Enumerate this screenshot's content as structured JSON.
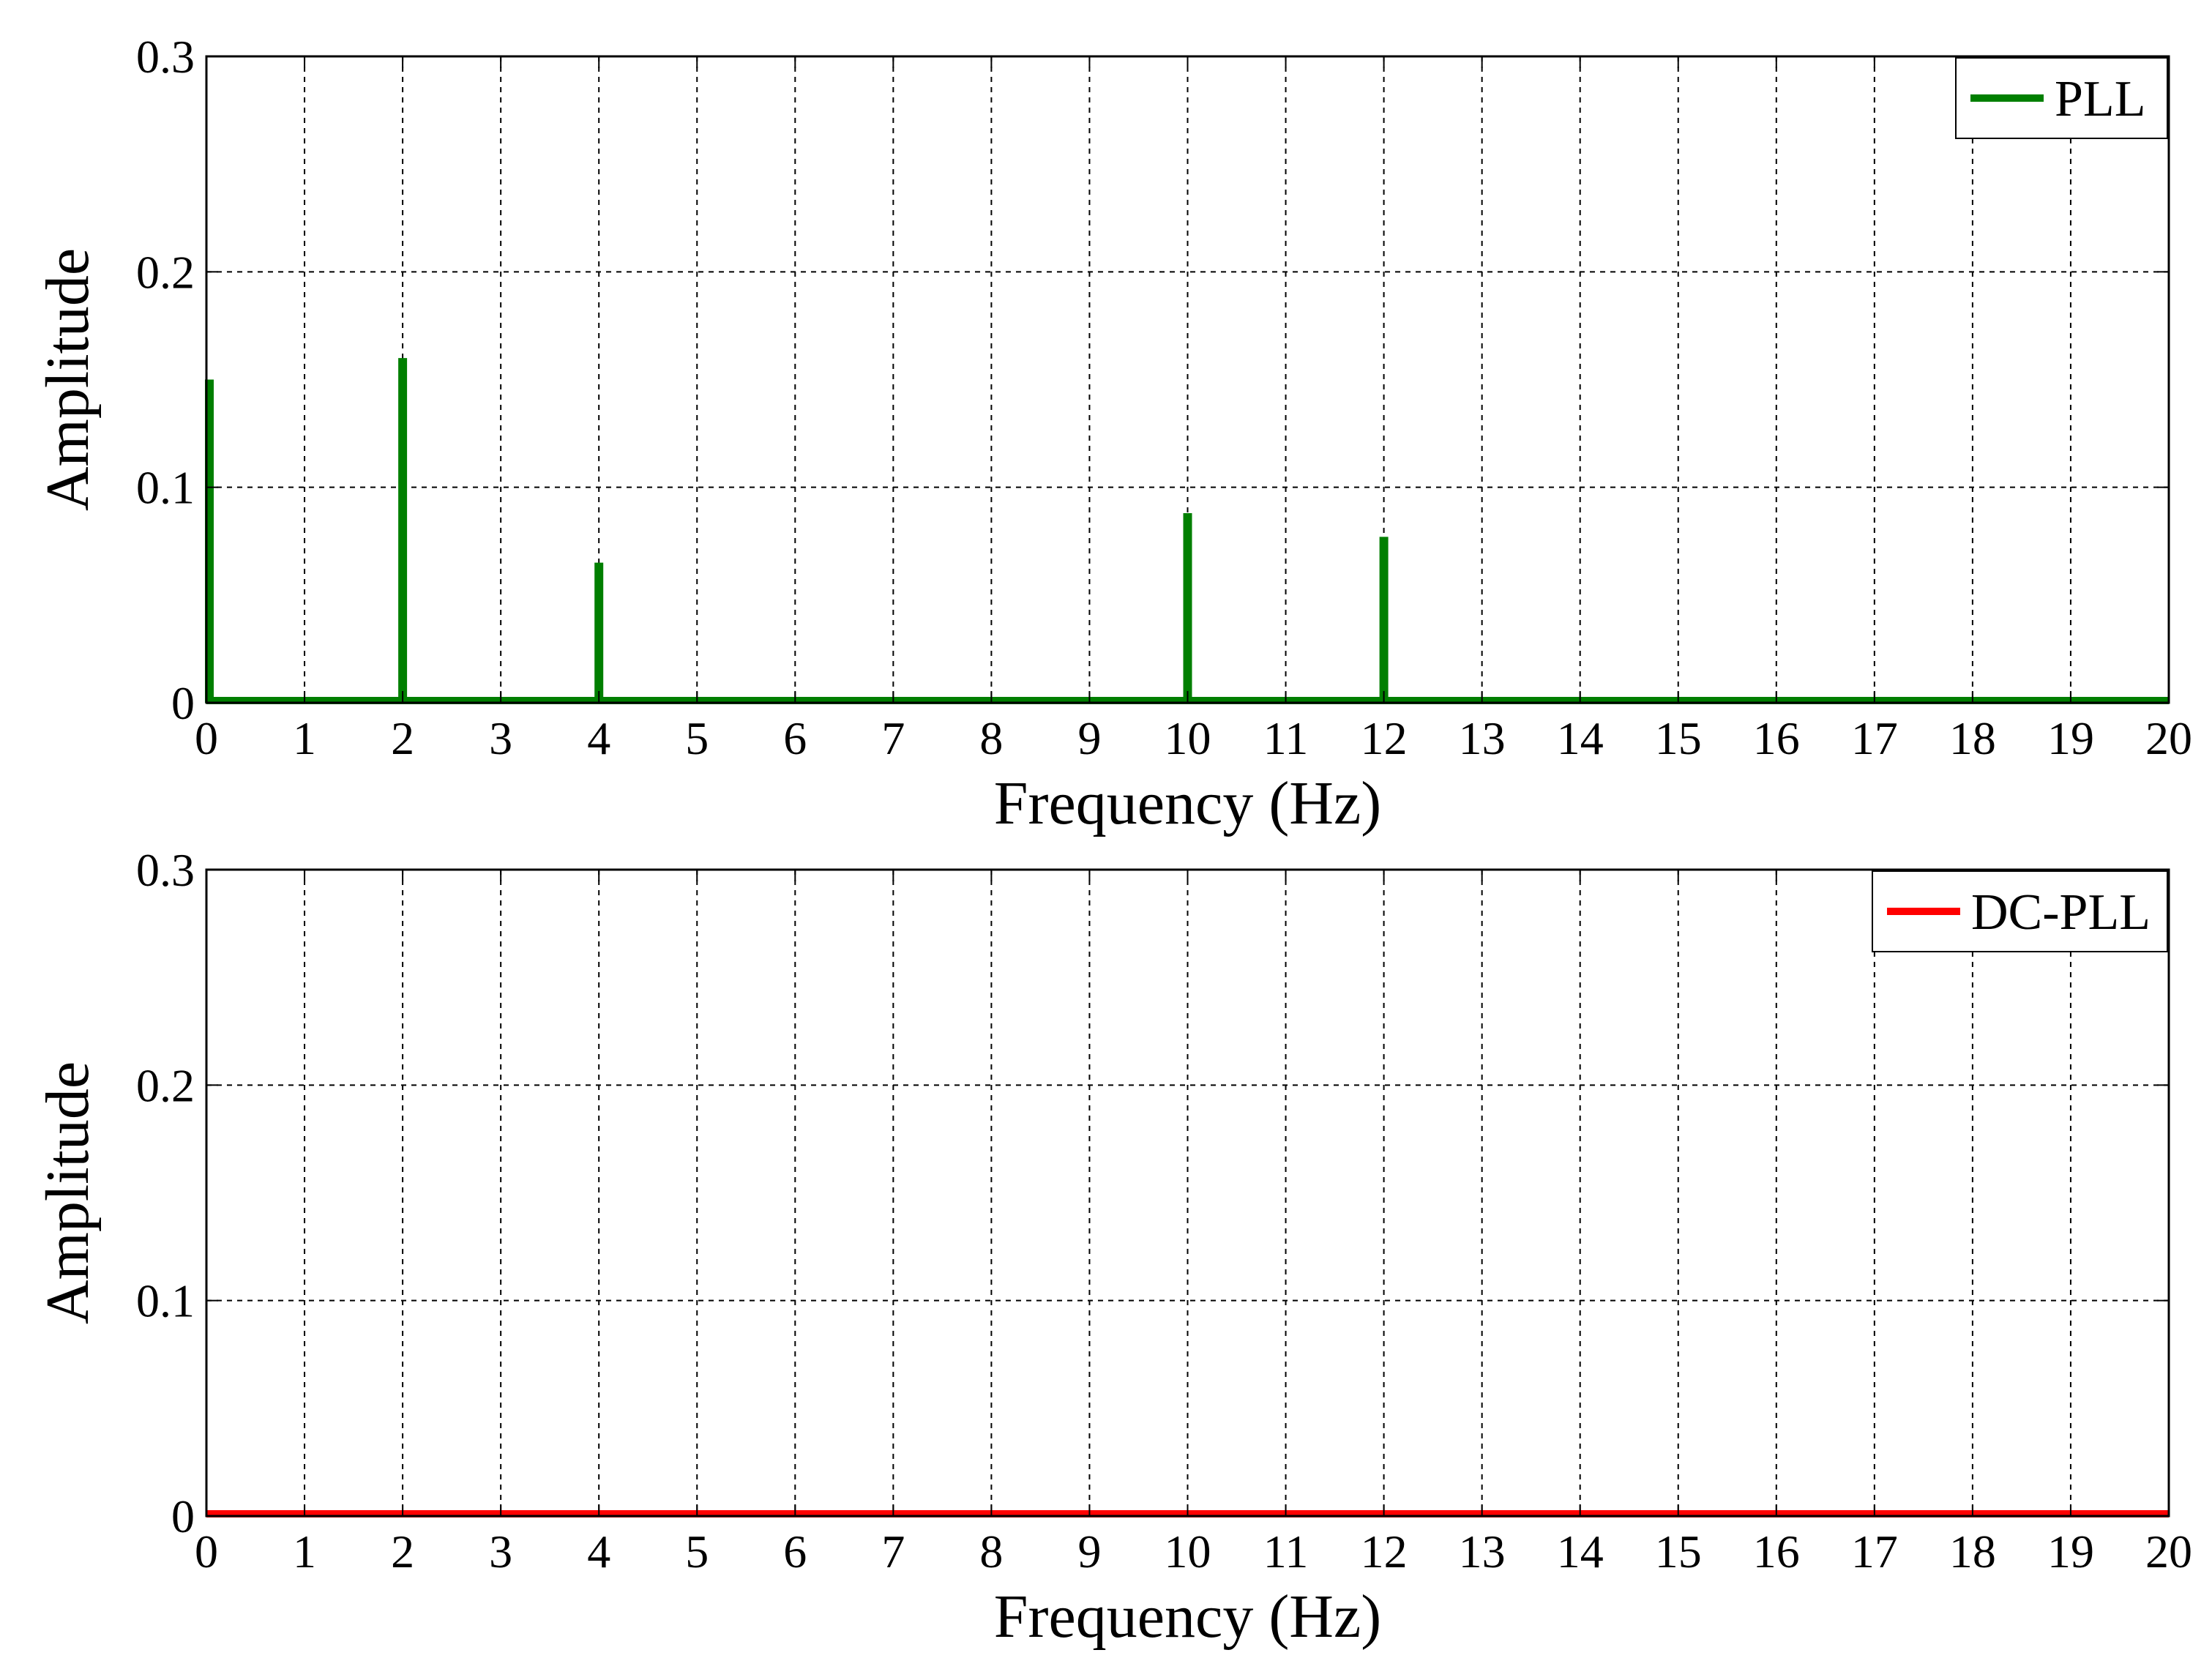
{
  "chart_data": [
    {
      "type": "bar",
      "xlabel": "Frequency (Hz)",
      "ylabel": "Amplitude",
      "xlim": [
        0,
        20
      ],
      "ylim": [
        0,
        0.3
      ],
      "xticks": [
        "0",
        "1",
        "2",
        "3",
        "4",
        "5",
        "6",
        "7",
        "8",
        "9",
        "10",
        "11",
        "12",
        "13",
        "14",
        "15",
        "16",
        "17",
        "18",
        "19",
        "20"
      ],
      "yticks": [
        "0",
        "0.1",
        "0.2",
        "0.3"
      ],
      "grid": true,
      "legend_position": "top-right",
      "series": [
        {
          "name": "PLL",
          "color": "#007f00",
          "x": [
            0,
            2,
            4,
            10,
            12
          ],
          "values": [
            0.15,
            0.16,
            0.065,
            0.088,
            0.077
          ]
        }
      ]
    },
    {
      "type": "line",
      "xlabel": "Frequency (Hz)",
      "ylabel": "Amplitude",
      "xlim": [
        0,
        20
      ],
      "ylim": [
        0,
        0.3
      ],
      "xticks": [
        "0",
        "1",
        "2",
        "3",
        "4",
        "5",
        "6",
        "7",
        "8",
        "9",
        "10",
        "11",
        "12",
        "13",
        "14",
        "15",
        "16",
        "17",
        "18",
        "19",
        "20"
      ],
      "yticks": [
        "0",
        "0.1",
        "0.2",
        "0.3"
      ],
      "grid": true,
      "legend_position": "top-right",
      "series": [
        {
          "name": "DC-PLL",
          "color": "#ff0000",
          "x": [
            0,
            20
          ],
          "values": [
            0,
            0
          ]
        }
      ]
    }
  ]
}
